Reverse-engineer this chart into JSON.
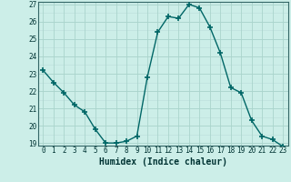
{
  "x": [
    0,
    1,
    2,
    3,
    4,
    5,
    6,
    7,
    8,
    9,
    10,
    11,
    12,
    13,
    14,
    15,
    16,
    17,
    18,
    19,
    20,
    21,
    22,
    23
  ],
  "y": [
    23.2,
    22.5,
    21.9,
    21.2,
    20.8,
    19.8,
    19.0,
    19.0,
    19.1,
    19.4,
    22.8,
    25.4,
    26.3,
    26.2,
    27.0,
    26.8,
    25.7,
    24.2,
    22.2,
    21.9,
    20.3,
    19.4,
    19.2,
    18.8
  ],
  "line_color": "#006666",
  "marker": "+",
  "markersize": 4,
  "linewidth": 1.0,
  "xlabel": "Humidex (Indice chaleur)",
  "xlabel_fontsize": 7,
  "bg_color": "#cceee8",
  "grid_major_color": "#aad4cc",
  "grid_minor_color": "#bbddda",
  "xlim": [
    -0.5,
    23.5
  ],
  "ylim_min": 19,
  "ylim_max": 27,
  "yticks": [
    19,
    20,
    21,
    22,
    23,
    24,
    25,
    26,
    27
  ],
  "xticks": [
    0,
    1,
    2,
    3,
    4,
    5,
    6,
    7,
    8,
    9,
    10,
    11,
    12,
    13,
    14,
    15,
    16,
    17,
    18,
    19,
    20,
    21,
    22,
    23
  ],
  "tick_fontsize": 5.5,
  "spine_color": "#336666"
}
